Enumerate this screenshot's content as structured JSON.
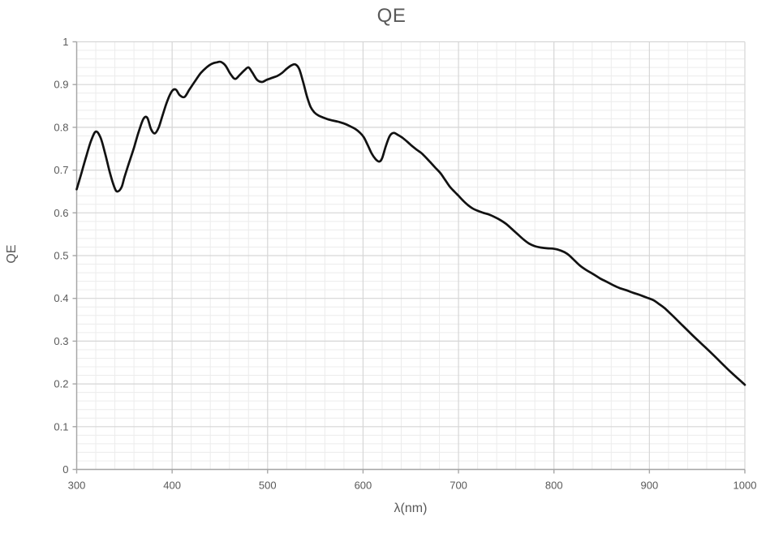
{
  "chart_data": {
    "type": "line",
    "title": "QE",
    "xlabel": "λ(nm)",
    "ylabel": "QE",
    "x_range": [
      300,
      1000
    ],
    "y_range": [
      0,
      1
    ],
    "x_major_step": 100,
    "x_minor_step": 20,
    "y_major_step": 0.1,
    "y_minor_step": 0.02,
    "x_tick_labels": [
      "300",
      "400",
      "500",
      "600",
      "700",
      "800",
      "900",
      "1000"
    ],
    "y_tick_labels": [
      "0",
      "0.1",
      "0.2",
      "0.3",
      "0.4",
      "0.5",
      "0.6",
      "0.7",
      "0.8",
      "0.9",
      "1"
    ],
    "grid": true,
    "legend": "none",
    "colors": {
      "line": "#121212",
      "major_grid": "#d6d6d6",
      "minor_grid": "#ececec",
      "axis": "#a6a6a6",
      "text": "#595959",
      "background": "#ffffff"
    },
    "series": [
      {
        "name": "QE",
        "points": [
          [
            300,
            0.655
          ],
          [
            305,
            0.693
          ],
          [
            310,
            0.732
          ],
          [
            315,
            0.768
          ],
          [
            320,
            0.79
          ],
          [
            325,
            0.776
          ],
          [
            330,
            0.737
          ],
          [
            335,
            0.692
          ],
          [
            340,
            0.657
          ],
          [
            343,
            0.65
          ],
          [
            347,
            0.66
          ],
          [
            350,
            0.683
          ],
          [
            355,
            0.718
          ],
          [
            360,
            0.752
          ],
          [
            365,
            0.79
          ],
          [
            370,
            0.82
          ],
          [
            374,
            0.822
          ],
          [
            378,
            0.795
          ],
          [
            382,
            0.786
          ],
          [
            386,
            0.8
          ],
          [
            390,
            0.828
          ],
          [
            395,
            0.862
          ],
          [
            400,
            0.885
          ],
          [
            404,
            0.888
          ],
          [
            408,
            0.875
          ],
          [
            413,
            0.871
          ],
          [
            418,
            0.888
          ],
          [
            424,
            0.908
          ],
          [
            430,
            0.927
          ],
          [
            436,
            0.94
          ],
          [
            442,
            0.949
          ],
          [
            447,
            0.952
          ],
          [
            451,
            0.953
          ],
          [
            456,
            0.944
          ],
          [
            461,
            0.925
          ],
          [
            466,
            0.913
          ],
          [
            471,
            0.923
          ],
          [
            476,
            0.934
          ],
          [
            480,
            0.94
          ],
          [
            484,
            0.928
          ],
          [
            489,
            0.911
          ],
          [
            494,
            0.906
          ],
          [
            499,
            0.911
          ],
          [
            505,
            0.916
          ],
          [
            510,
            0.92
          ],
          [
            515,
            0.927
          ],
          [
            520,
            0.937
          ],
          [
            525,
            0.945
          ],
          [
            529,
            0.947
          ],
          [
            533,
            0.937
          ],
          [
            537,
            0.908
          ],
          [
            541,
            0.874
          ],
          [
            545,
            0.848
          ],
          [
            549,
            0.835
          ],
          [
            553,
            0.828
          ],
          [
            558,
            0.823
          ],
          [
            563,
            0.819
          ],
          [
            568,
            0.816
          ],
          [
            574,
            0.813
          ],
          [
            580,
            0.809
          ],
          [
            586,
            0.803
          ],
          [
            592,
            0.796
          ],
          [
            597,
            0.787
          ],
          [
            601,
            0.776
          ],
          [
            605,
            0.758
          ],
          [
            609,
            0.739
          ],
          [
            613,
            0.726
          ],
          [
            617,
            0.72
          ],
          [
            620,
            0.728
          ],
          [
            624,
            0.757
          ],
          [
            628,
            0.78
          ],
          [
            632,
            0.787
          ],
          [
            636,
            0.783
          ],
          [
            641,
            0.776
          ],
          [
            646,
            0.767
          ],
          [
            651,
            0.757
          ],
          [
            656,
            0.748
          ],
          [
            661,
            0.74
          ],
          [
            666,
            0.729
          ],
          [
            671,
            0.717
          ],
          [
            676,
            0.705
          ],
          [
            681,
            0.693
          ],
          [
            686,
            0.677
          ],
          [
            691,
            0.661
          ],
          [
            696,
            0.649
          ],
          [
            700,
            0.64
          ],
          [
            705,
            0.628
          ],
          [
            710,
            0.618
          ],
          [
            715,
            0.61
          ],
          [
            720,
            0.605
          ],
          [
            726,
            0.6
          ],
          [
            732,
            0.596
          ],
          [
            738,
            0.59
          ],
          [
            744,
            0.583
          ],
          [
            750,
            0.574
          ],
          [
            756,
            0.562
          ],
          [
            762,
            0.55
          ],
          [
            768,
            0.538
          ],
          [
            774,
            0.528
          ],
          [
            780,
            0.522
          ],
          [
            786,
            0.519
          ],
          [
            793,
            0.517
          ],
          [
            800,
            0.516
          ],
          [
            807,
            0.512
          ],
          [
            814,
            0.504
          ],
          [
            820,
            0.492
          ],
          [
            827,
            0.477
          ],
          [
            834,
            0.466
          ],
          [
            841,
            0.457
          ],
          [
            848,
            0.447
          ],
          [
            855,
            0.439
          ],
          [
            862,
            0.431
          ],
          [
            869,
            0.424
          ],
          [
            876,
            0.419
          ],
          [
            883,
            0.413
          ],
          [
            890,
            0.408
          ],
          [
            897,
            0.402
          ],
          [
            904,
            0.396
          ],
          [
            910,
            0.387
          ],
          [
            916,
            0.377
          ],
          [
            925,
            0.358
          ],
          [
            935,
            0.336
          ],
          [
            945,
            0.314
          ],
          [
            955,
            0.293
          ],
          [
            965,
            0.272
          ],
          [
            975,
            0.25
          ],
          [
            985,
            0.228
          ],
          [
            1000,
            0.198
          ]
        ]
      }
    ]
  }
}
